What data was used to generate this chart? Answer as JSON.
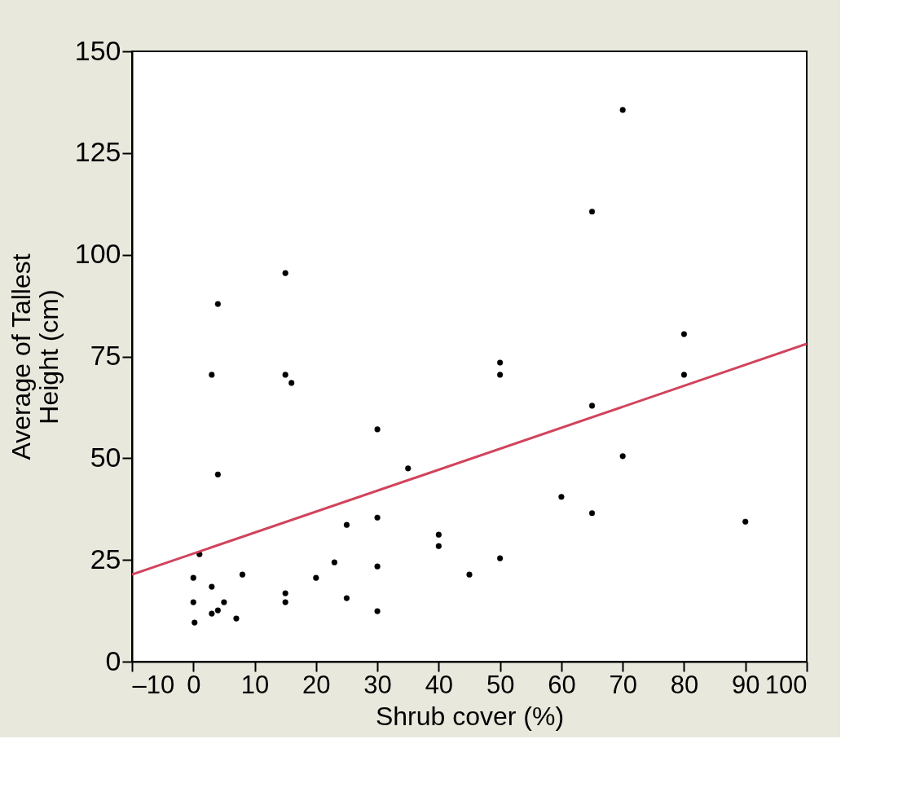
{
  "chart_data": {
    "type": "scatter",
    "xlabel": "Shrub cover (%)",
    "ylabel": "Average of Tallest\nHeight (cm)",
    "xlim": [
      -10,
      100
    ],
    "ylim": [
      0,
      150
    ],
    "xticks": [
      {
        "value": -10,
        "label": "–10"
      },
      0,
      10,
      20,
      30,
      40,
      50,
      60,
      70,
      80,
      90,
      100
    ],
    "yticks": [
      0,
      25,
      50,
      75,
      100,
      125,
      150
    ],
    "grid": false,
    "legend": false,
    "series": [
      {
        "type": "scatter",
        "marker": "circle",
        "color": "#000000",
        "x": [
          0,
          0,
          0.2,
          1,
          3,
          3,
          3,
          4,
          4,
          4,
          5,
          7,
          8,
          15,
          15,
          15,
          15,
          16,
          20,
          23,
          25,
          25,
          30,
          30,
          30,
          30,
          35,
          40,
          40,
          45,
          50,
          50,
          50,
          60,
          65,
          65,
          65,
          70,
          70,
          80,
          80,
          90
        ],
        "values": [
          20.6,
          14.6,
          9.6,
          26.4,
          70.5,
          18.4,
          11.8,
          87.9,
          46,
          12.6,
          14.6,
          10.6,
          21.4,
          95.5,
          70.5,
          16.8,
          14.6,
          68.5,
          20.6,
          24.4,
          33.6,
          15.6,
          57.1,
          35.4,
          23.4,
          12.4,
          47.5,
          31.2,
          28.4,
          21.4,
          73.5,
          70.5,
          25.4,
          40.5,
          110.6,
          62.9,
          36.5,
          135.6,
          50.5,
          80.5,
          70.5,
          34.4
        ]
      },
      {
        "type": "line",
        "color": "#d1435b",
        "x": [
          -10,
          100
        ],
        "values": [
          21.4,
          78.1
        ],
        "line_style": "solid"
      }
    ]
  }
}
